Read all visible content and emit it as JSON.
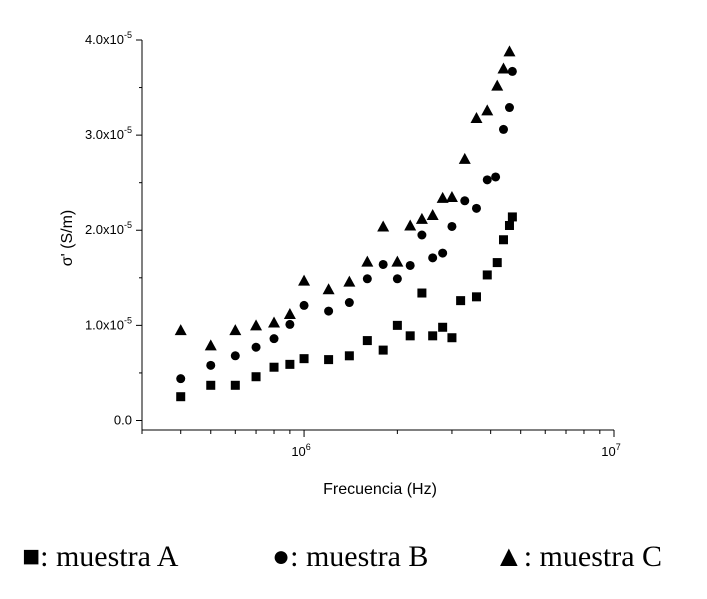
{
  "chart_data": {
    "type": "scatter",
    "title": "",
    "xlabel": "Frecuencia (Hz)",
    "ylabel": "σ' (S/m)",
    "xscale": "log",
    "xlim": [
      300000,
      10000000
    ],
    "ylim": [
      -1e-06,
      4e-05
    ],
    "grid": false,
    "x_ticks": [
      {
        "value": 1000000,
        "label": "10",
        "exp": "6"
      },
      {
        "value": 10000000,
        "label": "10",
        "exp": "7"
      }
    ],
    "y_ticks": [
      {
        "value": 0,
        "label": "0.0",
        "exp": ""
      },
      {
        "value": 1e-05,
        "label": "1.0x10",
        "exp": "-5"
      },
      {
        "value": 2e-05,
        "label": "2.0x10",
        "exp": "-5"
      },
      {
        "value": 3e-05,
        "label": "3.0x10",
        "exp": "-5"
      },
      {
        "value": 4e-05,
        "label": "4.0x10",
        "exp": "-5"
      }
    ],
    "series": [
      {
        "name": "muestra A",
        "marker": "square",
        "points": [
          [
            400000,
            2.5e-06
          ],
          [
            500000,
            3.7e-06
          ],
          [
            600000,
            3.7e-06
          ],
          [
            700000,
            4.6e-06
          ],
          [
            800000,
            5.6e-06
          ],
          [
            900000,
            5.9e-06
          ],
          [
            1000000,
            6.5e-06
          ],
          [
            1200000,
            6.4e-06
          ],
          [
            1400000,
            6.8e-06
          ],
          [
            1600000,
            8.4e-06
          ],
          [
            1800000,
            7.4e-06
          ],
          [
            2000000,
            1e-05
          ],
          [
            2200000,
            8.9e-06
          ],
          [
            2400000,
            1.34e-05
          ],
          [
            2600000,
            8.9e-06
          ],
          [
            2800000,
            9.8e-06
          ],
          [
            3000000,
            8.7e-06
          ],
          [
            3200000,
            1.26e-05
          ],
          [
            3600000,
            1.3e-05
          ],
          [
            3900000,
            1.53e-05
          ],
          [
            4200000,
            1.66e-05
          ],
          [
            4400000,
            1.9e-05
          ],
          [
            4600000,
            2.05e-05
          ],
          [
            4700000,
            2.14e-05
          ]
        ]
      },
      {
        "name": "muestra B",
        "marker": "circle",
        "points": [
          [
            400000,
            4.4e-06
          ],
          [
            500000,
            5.8e-06
          ],
          [
            600000,
            6.8e-06
          ],
          [
            700000,
            7.7e-06
          ],
          [
            800000,
            8.6e-06
          ],
          [
            900000,
            1.01e-05
          ],
          [
            1000000,
            1.21e-05
          ],
          [
            1200000,
            1.15e-05
          ],
          [
            1400000,
            1.24e-05
          ],
          [
            1600000,
            1.49e-05
          ],
          [
            1800000,
            1.64e-05
          ],
          [
            2000000,
            1.49e-05
          ],
          [
            2200000,
            1.63e-05
          ],
          [
            2400000,
            1.95e-05
          ],
          [
            2600000,
            1.71e-05
          ],
          [
            2800000,
            1.76e-05
          ],
          [
            3000000,
            2.04e-05
          ],
          [
            3300000,
            2.31e-05
          ],
          [
            3600000,
            2.23e-05
          ],
          [
            3900000,
            2.53e-05
          ],
          [
            4150000,
            2.56e-05
          ],
          [
            4400000,
            3.06e-05
          ],
          [
            4600000,
            3.29e-05
          ],
          [
            4700000,
            3.67e-05
          ]
        ]
      },
      {
        "name": "muestra C",
        "marker": "triangle",
        "points": [
          [
            400000,
            9.5e-06
          ],
          [
            500000,
            7.9e-06
          ],
          [
            600000,
            9.5e-06
          ],
          [
            700000,
            1e-05
          ],
          [
            800000,
            1.03e-05
          ],
          [
            900000,
            1.12e-05
          ],
          [
            1000000,
            1.47e-05
          ],
          [
            1200000,
            1.38e-05
          ],
          [
            1400000,
            1.46e-05
          ],
          [
            1600000,
            1.67e-05
          ],
          [
            1800000,
            2.04e-05
          ],
          [
            2000000,
            1.67e-05
          ],
          [
            2200000,
            2.05e-05
          ],
          [
            2400000,
            2.12e-05
          ],
          [
            2600000,
            2.16e-05
          ],
          [
            2800000,
            2.34e-05
          ],
          [
            3000000,
            2.35e-05
          ],
          [
            3300000,
            2.75e-05
          ],
          [
            3600000,
            3.18e-05
          ],
          [
            3900000,
            3.26e-05
          ],
          [
            4200000,
            3.52e-05
          ],
          [
            4400000,
            3.7e-05
          ],
          [
            4600000,
            3.88e-05
          ]
        ]
      }
    ]
  },
  "legend": {
    "items": [
      {
        "symbol": "■",
        "label": ": muestra A"
      },
      {
        "symbol": "●",
        "label": ": muestra B"
      },
      {
        "symbol": "▲",
        "label": ": muestra C"
      }
    ]
  }
}
